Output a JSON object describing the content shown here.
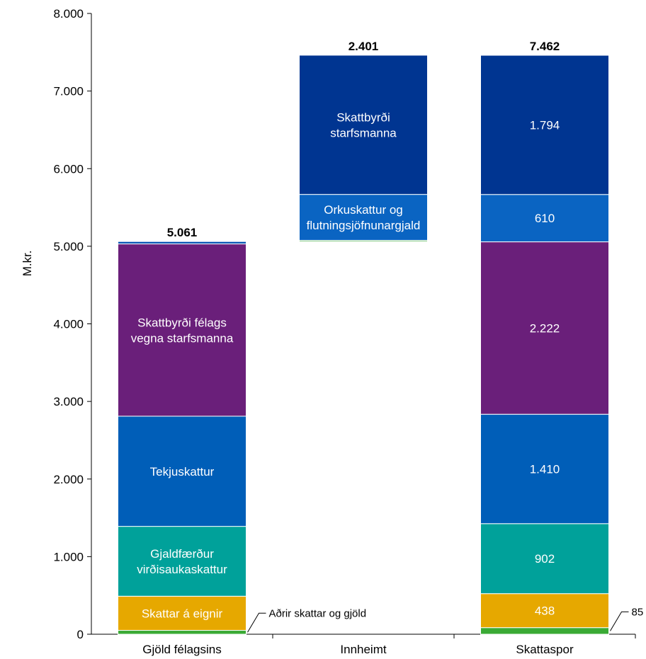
{
  "chart_data": {
    "type": "bar",
    "stacked": true,
    "waterfall": true,
    "ylabel": "M.kr.",
    "ylim": [
      0,
      8000
    ],
    "yticks": [
      "0",
      "1.000",
      "2.000",
      "3.000",
      "4.000",
      "5.000",
      "6.000",
      "7.000",
      "8.000"
    ],
    "categories": [
      "Gjöld félagsins",
      "Innheimt",
      "Skattaspor"
    ],
    "totals": [
      "5.061",
      "2.401",
      "7.462"
    ],
    "total_values": [
      5061,
      2401,
      7462
    ],
    "bars": [
      {
        "category": "Gjöld félagsins",
        "base": 0,
        "segments": [
          {
            "value": 50,
            "color": "#3aaa35",
            "label": "",
            "callout": "Aðrir skattar og gjöld"
          },
          {
            "value": 440,
            "color": "#e6a800",
            "label": "Skattar á eignir"
          },
          {
            "value": 900,
            "color": "#00a19a",
            "label": "Gjaldfærður virðisaukaskattur"
          },
          {
            "value": 1420,
            "color": "#005eb8",
            "label": "Tekjuskattur"
          },
          {
            "value": 2220,
            "color": "#6a1f7a",
            "label": "Skattbyrði félags vegna starfsmanna"
          },
          {
            "value": 31,
            "color": "#0a58b5",
            "label": ""
          }
        ]
      },
      {
        "category": "Innheimt",
        "base": 5061,
        "segments": [
          {
            "value": 15,
            "color": "#3aaa35",
            "label": ""
          },
          {
            "value": 592,
            "color": "#0a64c2",
            "label": "Orkuskattur og flutningsjöfnunargjald"
          },
          {
            "value": 1794,
            "color": "#003591",
            "label": "Skattbyrði starfsmanna"
          }
        ]
      },
      {
        "category": "Skattaspor",
        "base": 0,
        "segments": [
          {
            "value": 85,
            "color": "#3aaa35",
            "label": "",
            "callout": "85"
          },
          {
            "value": 438,
            "color": "#e6a800",
            "label": "438"
          },
          {
            "value": 902,
            "color": "#00a19a",
            "label": "902"
          },
          {
            "value": 1410,
            "color": "#005eb8",
            "label": "1.410"
          },
          {
            "value": 2222,
            "color": "#6a1f7a",
            "label": "2.222"
          },
          {
            "value": 610,
            "color": "#0a64c2",
            "label": "610"
          },
          {
            "value": 1794,
            "color": "#003591",
            "label": "1.794"
          }
        ]
      }
    ],
    "grid": false,
    "legend": "none"
  }
}
